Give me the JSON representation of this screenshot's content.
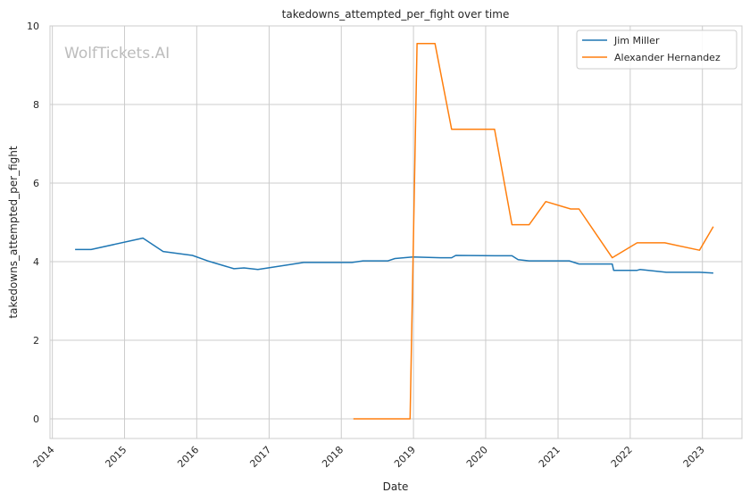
{
  "chart_data": {
    "type": "line",
    "title": "takedowns_attempted_per_fight over time",
    "xlabel": "Date",
    "ylabel": "takedowns_attempted_per_fight",
    "watermark": "WolfTickets.AI",
    "xlim": [
      "2013-12-20",
      "2023-07-20"
    ],
    "ylim": [
      -0.5,
      10
    ],
    "x_ticks": [
      "2014",
      "2015",
      "2016",
      "2017",
      "2018",
      "2019",
      "2020",
      "2021",
      "2022",
      "2023"
    ],
    "y_ticks": [
      0,
      2,
      4,
      6,
      8,
      10
    ],
    "grid": true,
    "legend_position": "top-right",
    "series": [
      {
        "name": "Jim Miller",
        "color": "#1f77b4",
        "points": [
          [
            "2014-04-26",
            4.31
          ],
          [
            "2014-07-16",
            4.31
          ],
          [
            "2015-04-04",
            4.6
          ],
          [
            "2015-07-15",
            4.26
          ],
          [
            "2015-12-10",
            4.16
          ],
          [
            "2016-02-25",
            4.02
          ],
          [
            "2016-07-07",
            3.82
          ],
          [
            "2016-08-27",
            3.84
          ],
          [
            "2016-11-05",
            3.8
          ],
          [
            "2017-06-25",
            3.98
          ],
          [
            "2018-02-24",
            3.98
          ],
          [
            "2018-04-21",
            4.02
          ],
          [
            "2018-08-25",
            4.02
          ],
          [
            "2018-09-29",
            4.08
          ],
          [
            "2018-12-29",
            4.12
          ],
          [
            "2019-05-18",
            4.1
          ],
          [
            "2019-07-13",
            4.1
          ],
          [
            "2019-08-03",
            4.16
          ],
          [
            "2020-02-15",
            4.15
          ],
          [
            "2020-05-13",
            4.15
          ],
          [
            "2020-06-13",
            4.05
          ],
          [
            "2020-08-08",
            4.02
          ],
          [
            "2021-02-27",
            4.02
          ],
          [
            "2021-04-17",
            3.94
          ],
          [
            "2021-10-02",
            3.94
          ],
          [
            "2021-10-09",
            3.78
          ],
          [
            "2022-02-05",
            3.78
          ],
          [
            "2022-02-19",
            3.8
          ],
          [
            "2022-07-02",
            3.73
          ],
          [
            "2022-12-17",
            3.73
          ],
          [
            "2023-02-25",
            3.71
          ]
        ]
      },
      {
        "name": "Alexander Hernandez",
        "color": "#ff7f0e",
        "points": [
          [
            "2018-03-03",
            0.0
          ],
          [
            "2018-12-15",
            0.0
          ],
          [
            "2019-01-19",
            9.55
          ],
          [
            "2019-04-20",
            9.55
          ],
          [
            "2019-07-13",
            7.37
          ],
          [
            "2020-02-15",
            7.37
          ],
          [
            "2020-05-13",
            4.94
          ],
          [
            "2020-08-08",
            4.94
          ],
          [
            "2020-10-31",
            5.53
          ],
          [
            "2021-03-06",
            5.34
          ],
          [
            "2021-04-17",
            5.34
          ],
          [
            "2021-10-02",
            4.1
          ],
          [
            "2022-02-05",
            4.48
          ],
          [
            "2022-06-25",
            4.48
          ],
          [
            "2022-12-17",
            4.29
          ],
          [
            "2023-02-25",
            4.89
          ]
        ]
      }
    ]
  }
}
